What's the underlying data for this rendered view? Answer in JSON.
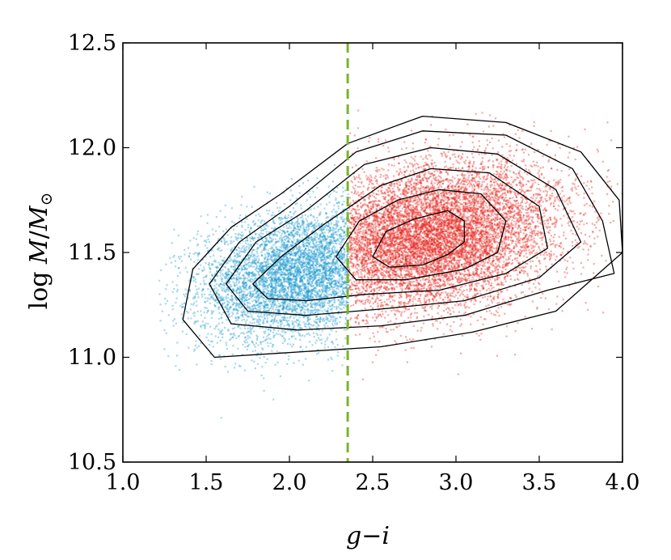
{
  "chart_data": {
    "type": "scatter",
    "title": "",
    "xlabel": "g−i",
    "ylabel": "log M/M⊙",
    "xlim": [
      1.0,
      4.0
    ],
    "ylim": [
      10.5,
      12.5
    ],
    "xticks": [
      1.0,
      1.5,
      2.0,
      2.5,
      3.0,
      3.5,
      4.0
    ],
    "xtick_labels": [
      "1.0",
      "1.5",
      "2.0",
      "2.5",
      "3.0",
      "3.5",
      "4.0"
    ],
    "yticks": [
      10.5,
      11.0,
      11.5,
      12.0,
      12.5
    ],
    "ytick_labels": [
      "10.5",
      "11.0",
      "11.5",
      "12.0",
      "12.5"
    ],
    "grid": false,
    "legend": "none",
    "color_split": 2.35,
    "colors": {
      "blue": "#1f9bcf",
      "red": "#e8251c",
      "cut_line": "#7ab32e",
      "contour": "#000000"
    },
    "series": [
      {
        "color": "#1f9bcf",
        "region": "g-i < 2.35",
        "distribution": {
          "x_mean": 2.05,
          "x_std": 0.3,
          "y_mean": 11.4,
          "y_std": 0.15,
          "x_range": [
            1.2,
            2.35
          ],
          "y_range": [
            10.6,
            11.95
          ],
          "n_points": 5200
        }
      },
      {
        "color": "#e8251c",
        "region": "g-i >= 2.35",
        "distribution": {
          "x_mean": 2.85,
          "x_std": 0.38,
          "y_mean": 11.58,
          "y_std": 0.17,
          "x_range": [
            2.35,
            4.0
          ],
          "y_range": [
            10.85,
            12.2
          ],
          "n_points": 9000
        }
      }
    ],
    "vertical_line": {
      "x": 2.35,
      "style": "dashed",
      "color": "#7ab32e"
    },
    "contours": [
      [
        [
          2.5,
          11.48
        ],
        [
          2.58,
          11.6
        ],
        [
          2.75,
          11.66
        ],
        [
          2.95,
          11.7
        ],
        [
          3.05,
          11.65
        ],
        [
          3.05,
          11.55
        ],
        [
          2.95,
          11.49
        ],
        [
          2.8,
          11.44
        ],
        [
          2.6,
          11.43
        ]
      ],
      [
        [
          2.28,
          11.48
        ],
        [
          2.42,
          11.65
        ],
        [
          2.65,
          11.75
        ],
        [
          2.9,
          11.8
        ],
        [
          3.15,
          11.78
        ],
        [
          3.3,
          11.65
        ],
        [
          3.25,
          11.5
        ],
        [
          3.05,
          11.42
        ],
        [
          2.7,
          11.37
        ],
        [
          2.4,
          11.37
        ]
      ],
      [
        [
          1.78,
          11.35
        ],
        [
          1.95,
          11.48
        ],
        [
          2.2,
          11.63
        ],
        [
          2.55,
          11.82
        ],
        [
          2.85,
          11.9
        ],
        [
          3.2,
          11.88
        ],
        [
          3.5,
          11.72
        ],
        [
          3.55,
          11.52
        ],
        [
          3.3,
          11.4
        ],
        [
          2.9,
          11.32
        ],
        [
          2.45,
          11.3
        ],
        [
          2.1,
          11.27
        ],
        [
          1.87,
          11.28
        ]
      ],
      [
        [
          1.62,
          11.35
        ],
        [
          1.8,
          11.55
        ],
        [
          2.1,
          11.7
        ],
        [
          2.45,
          11.92
        ],
        [
          2.85,
          12.0
        ],
        [
          3.25,
          11.97
        ],
        [
          3.6,
          11.8
        ],
        [
          3.75,
          11.55
        ],
        [
          3.5,
          11.38
        ],
        [
          3.05,
          11.27
        ],
        [
          2.55,
          11.23
        ],
        [
          2.1,
          11.2
        ],
        [
          1.75,
          11.22
        ]
      ],
      [
        [
          1.52,
          11.35
        ],
        [
          1.7,
          11.55
        ],
        [
          2.0,
          11.72
        ],
        [
          2.4,
          11.98
        ],
        [
          2.8,
          12.08
        ],
        [
          3.3,
          12.06
        ],
        [
          3.7,
          11.9
        ],
        [
          3.88,
          11.65
        ],
        [
          3.95,
          11.4
        ],
        [
          3.55,
          11.32
        ],
        [
          3.05,
          11.2
        ],
        [
          2.55,
          11.15
        ],
        [
          2.05,
          11.13
        ],
        [
          1.65,
          11.16
        ]
      ],
      [
        [
          1.36,
          11.18
        ],
        [
          1.42,
          11.42
        ],
        [
          1.65,
          11.62
        ],
        [
          1.95,
          11.78
        ],
        [
          2.35,
          12.02
        ],
        [
          2.8,
          12.15
        ],
        [
          3.3,
          12.12
        ],
        [
          3.75,
          11.98
        ],
        [
          3.98,
          11.75
        ],
        [
          4.0,
          11.5
        ],
        [
          3.6,
          11.22
        ],
        [
          3.1,
          11.12
        ],
        [
          2.55,
          11.05
        ],
        [
          1.95,
          11.02
        ],
        [
          1.55,
          11.0
        ]
      ]
    ]
  }
}
